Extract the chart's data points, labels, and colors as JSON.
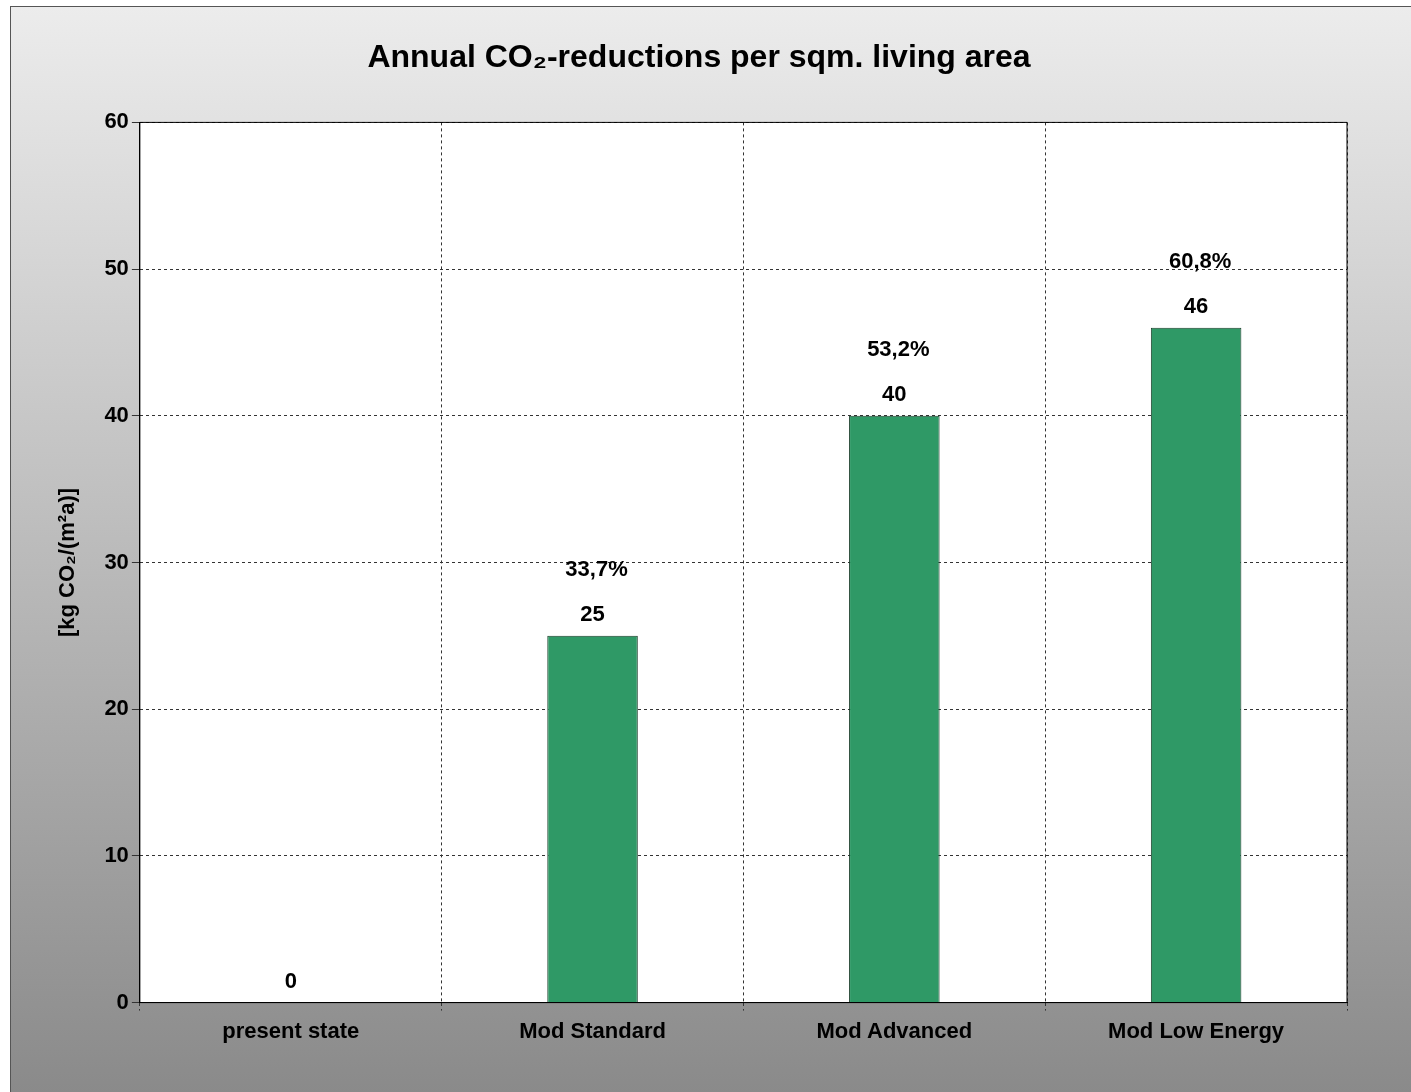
{
  "chart_data": {
    "type": "bar",
    "title": "Annual CO₂-reductions per sqm. living area",
    "ylabel": "[kg CO₂/(m²a)]",
    "categories": [
      "present state",
      "Mod Standard",
      "Mod Advanced",
      "Mod Low Energy"
    ],
    "values": [
      0,
      25,
      40,
      46
    ],
    "color": "#2f9966",
    "ylim": [
      0,
      60
    ],
    "yticks": [
      0,
      10,
      20,
      30,
      40,
      50,
      60
    ],
    "grid": true,
    "data_labels": true,
    "annotations": [
      {
        "text": "33,7%",
        "x": "Mod Standard",
        "y": 25
      },
      {
        "text": "53,2%",
        "x": "Mod Advanced",
        "y": 40
      },
      {
        "text": "60,8%",
        "x": "Mod Low Energy",
        "y": 46
      }
    ]
  }
}
